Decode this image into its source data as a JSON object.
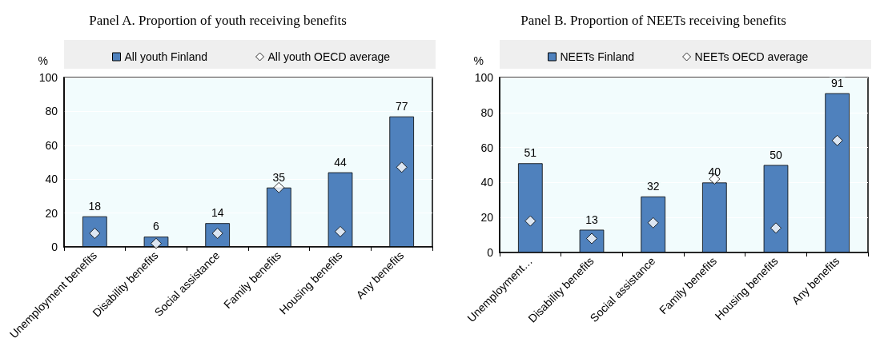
{
  "chart_data": [
    {
      "type": "bar",
      "title": "Panel A. Proportion of youth receiving benefits",
      "ylabel": "%",
      "categories": [
        "Unemployment benefits",
        "Disability benefits",
        "Social assistance",
        "Family benefits",
        "Housing benefits",
        "Any benefits"
      ],
      "series": [
        {
          "name": "All youth Finland",
          "color": "#4f81bd",
          "values": [
            18,
            6,
            14,
            35,
            44,
            77
          ],
          "value_labels": [
            "18",
            "6",
            "14",
            "35",
            "44",
            "77"
          ]
        },
        {
          "name": "All youth OECD average",
          "type": "scatter",
          "marker": "diamond",
          "color": "#ffffff",
          "x": [
            "Unemployment benefits",
            "Disability benefits",
            "Social assistance",
            "Family benefits",
            "Housing benefits",
            "Any benefits"
          ],
          "values": [
            8,
            2,
            8,
            35,
            9,
            47
          ]
        }
      ],
      "ylim": [
        0,
        100
      ],
      "yticks": [
        0,
        20,
        40,
        60,
        80,
        100
      ],
      "grid": "y",
      "legend": "top"
    },
    {
      "type": "bar",
      "title": "Panel B. Proportion of NEETs receiving benefits",
      "ylabel": "%",
      "categories": [
        "Unemployment…",
        "Disability benefits",
        "Social assistance",
        "Family benefits",
        "Housing benefits",
        "Any benefits"
      ],
      "series": [
        {
          "name": "NEETs Finland",
          "color": "#4f81bd",
          "values": [
            51,
            13,
            32,
            40,
            50,
            91
          ],
          "value_labels": [
            "51",
            "13",
            "32",
            "40",
            "50",
            "91"
          ]
        },
        {
          "name": "NEETs OECD average",
          "type": "scatter",
          "marker": "diamond",
          "color": "#ffffff",
          "x": [
            "Unemployment…",
            "Disability benefits",
            "Social assistance",
            "Family benefits",
            "Housing benefits",
            "Any benefits"
          ],
          "values": [
            18,
            8,
            17,
            42,
            14,
            64
          ]
        }
      ],
      "ylim": [
        0,
        100
      ],
      "yticks": [
        0,
        20,
        40,
        60,
        80,
        100
      ],
      "grid": "y",
      "legend": "top"
    }
  ]
}
